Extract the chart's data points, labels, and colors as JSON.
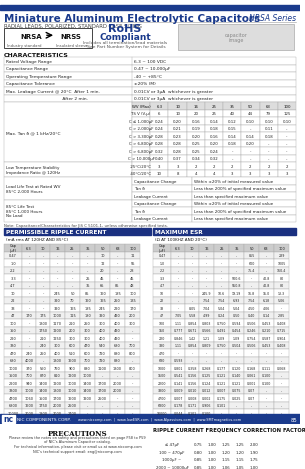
{
  "title": "Miniature Aluminum Electrolytic Capacitors",
  "series": "NRSA Series",
  "subtitle": "RADIAL LEADS, POLARIZED, STANDARD CASE SIZING",
  "rohs_line1": "RoHS",
  "rohs_line2": "Compliant",
  "rohs_sub": "Includes all termination/lead materials",
  "part_number_note": "*See Part Number System for Details",
  "characteristics_title": "CHARACTERISTICS",
  "ripple_title": "PERMISSIBLE RIPPLE CURRENT",
  "ripple_subtitle": "(mA rms AT 120HZ AND 85°C)",
  "esr_title": "MAXIMUM ESR",
  "esr_subtitle": "(Ω AT 100KHZ AND 20°C)",
  "precautions_title": "PRECAUTIONS",
  "precautions_lines": [
    "Please review the notes on safety and precautions listed on page P58 to P59",
    "of NIC's Aluminum Capacitor catalog.",
    "For technical information, please visit or email us at www.niccomp.com",
    "NIC's technical support email: eng@niccomp.com"
  ],
  "correction_title": "RIPPLE CURRENT FREQUENCY CORRECTION FACTOR",
  "bg_color": "#ffffff",
  "title_color": "#1a3a8c",
  "table_line_color": "#aaaaaa",
  "company": "NIC COMPONENTS CORP.",
  "website": "www.niccomp.com  |  www.lowESR.com  |  www.AIpassives.com  |  www.SMTmagnetics.com",
  "page_num": "85",
  "char_data": [
    [
      "Rated Voltage Range",
      "6.3 ~ 100 VDC"
    ],
    [
      "Capacitance Range",
      "0.47 ~ 10,000μF"
    ],
    [
      "Operating Temperature Range",
      "-40 ~ +85°C"
    ],
    [
      "Capacitance Tolerance",
      "±20% (M)"
    ],
    [
      "Max. Leakage Current @ 20°C  After 1 min.",
      "0.01CV or 3μA  whichever is greater"
    ],
    [
      "                                         After 2 min.",
      "0.01CV or 3μA  whichever is greater"
    ]
  ],
  "tan_cols": [
    "WV (Max)",
    "6.3",
    "10",
    "16",
    "25",
    "35",
    "50",
    "63",
    "100"
  ],
  "tan_rows": [
    [
      "TS V (V-μ)",
      "6",
      "10",
      "20",
      "25",
      "40",
      "44",
      "79",
      "125"
    ],
    [
      "C ≤ 1,000μF",
      "0.24",
      "0.20",
      "0.16",
      "0.14",
      "0.12",
      "0.10",
      "0.10",
      "0.10"
    ],
    [
      "C > 2,000μF",
      "0.24",
      "0.21",
      "0.19",
      "0.18",
      "0.15",
      "-",
      "0.11",
      "-"
    ],
    [
      "C > 3,300μF",
      "0.28",
      "0.23",
      "0.20",
      "0.16",
      "0.14",
      "0.14",
      "0.18",
      "-"
    ],
    [
      "C > 6,800μF",
      "0.28",
      "0.28",
      "0.25",
      "0.20",
      "0.18",
      "0.20",
      "-",
      "-"
    ],
    [
      "C > 6,800μF",
      "0.32",
      "0.28",
      "0.25",
      "0.24",
      "-",
      "-",
      "-",
      "-"
    ],
    [
      "C > 10,000μF",
      "0.40",
      "0.37",
      "0.34",
      "0.32",
      "-",
      "-",
      "-",
      "-"
    ]
  ],
  "lts_rows": [
    [
      "-25°C/20°C",
      "3",
      "3",
      "2",
      "2",
      "2",
      "2",
      "2",
      "2"
    ],
    [
      "-40°C/20°C",
      "10",
      "8",
      "4",
      "4",
      "3",
      "3",
      "3",
      "3"
    ]
  ],
  "ll_rows": [
    [
      "Capacitance Change",
      "Within ±20% of initial measured value"
    ],
    [
      "Tan δ",
      "Less than 200% of specified maximum value"
    ],
    [
      "Leakage Current",
      "Less than specified maximum value"
    ],
    [
      "Capacitance Change",
      "Within ±20% of initial measured value"
    ],
    [
      "Tan δ",
      "Less than 200% of specified maximum value"
    ],
    [
      "Leakage Current",
      "Less than specified maximum value"
    ]
  ],
  "rip_cols": [
    "Cap\n(μF)",
    "6.3",
    "10",
    "16",
    "25",
    "35",
    "50",
    "63",
    "100"
  ],
  "rip_data": [
    [
      "0.47",
      "-",
      "-",
      "-",
      "-",
      "-",
      "10",
      "-",
      "11"
    ],
    [
      "1.0",
      "-",
      "-",
      "-",
      "-",
      "-",
      "12",
      "-",
      "55"
    ],
    [
      "2.2",
      "-",
      "-",
      "-",
      "-",
      "-",
      "20",
      "-",
      "28"
    ],
    [
      "3.3",
      "-",
      "-",
      "-",
      "-",
      "25",
      "45",
      "-",
      "45"
    ],
    [
      "4.7",
      "-",
      "-",
      "-",
      "-",
      "35",
      "65",
      "85",
      "48"
    ],
    [
      "10",
      "-",
      "-",
      "245",
      "50",
      "85",
      "160",
      "185",
      "100"
    ],
    [
      "22",
      "-",
      "-",
      "320",
      "70",
      "160",
      "165",
      "250",
      "135"
    ],
    [
      "33",
      "-",
      "-",
      "390",
      "165",
      "185",
      "245",
      "290",
      "170"
    ],
    [
      "47",
      "170",
      "175",
      "1000",
      "115",
      "180",
      "390",
      "490",
      "200"
    ],
    [
      "100",
      "-",
      "1300",
      "1170",
      "210",
      "250",
      "300",
      "400",
      "300"
    ],
    [
      "150",
      "-",
      "1750",
      "1200",
      "200",
      "300",
      "400",
      "490",
      "-"
    ],
    [
      "220",
      "-",
      "210",
      "1250",
      "300",
      "300",
      "400",
      "490",
      "-"
    ],
    [
      "330",
      "-",
      "240",
      "300",
      "600",
      "470",
      "540",
      "680",
      "700"
    ],
    [
      "470",
      "240",
      "250",
      "400",
      "510",
      "600",
      "720",
      "880",
      "800"
    ],
    [
      "680",
      "4000",
      "-",
      "1300",
      "1600",
      "700",
      "720",
      "880",
      "-"
    ],
    [
      "1000",
      "370",
      "560",
      "760",
      "900",
      "880",
      "1100",
      "1300",
      "800"
    ],
    [
      "1500",
      "700",
      "870",
      "810",
      "1200",
      "1000",
      "-",
      "-",
      "-"
    ],
    [
      "2200",
      "940",
      "1400",
      "1200",
      "1000",
      "1400",
      "1700",
      "2000",
      "-"
    ],
    [
      "3300",
      "1000",
      "1400",
      "1300",
      "1000",
      "1400",
      "1700",
      "2000",
      "-"
    ],
    [
      "4700",
      "1060",
      "1500",
      "1700",
      "1600",
      "1900",
      "2500",
      "-",
      "-"
    ],
    [
      "6800",
      "1600",
      "1750",
      "2000",
      "2500",
      "-",
      "-",
      "-",
      "-"
    ],
    [
      "10000",
      "2000",
      "1300",
      "2000",
      "2700",
      "-",
      "-",
      "-",
      "-"
    ]
  ],
  "esr_cols": [
    "Cap\n(μF)",
    "6.3",
    "10",
    "16",
    "25",
    "35",
    "50",
    "63",
    "100"
  ],
  "esr_data": [
    [
      "0.47",
      "-",
      "-",
      "-",
      "-",
      "-",
      "855",
      "-",
      "289"
    ],
    [
      "1.0",
      "-",
      "-",
      "-",
      "-",
      "-",
      "600",
      "-",
      "1005"
    ],
    [
      "2.2",
      "-",
      "-",
      "-",
      "-",
      "-",
      "75.4",
      "-",
      "160.4"
    ],
    [
      "3.3",
      "-",
      "-",
      "-",
      "-",
      "500.6",
      "-",
      "40.8",
      "80"
    ],
    [
      "4.7",
      "-",
      "-",
      "-",
      "-",
      "550.8",
      "-",
      "40.8",
      "80"
    ],
    [
      "10",
      "-",
      "-",
      "245.9",
      "10.6",
      "19.19",
      "16.8",
      "15.0",
      "13.3"
    ],
    [
      "22",
      "-",
      "-",
      "7.54",
      "7.54",
      "6.93",
      "7.54",
      "6.18",
      "5.06"
    ],
    [
      "33",
      "-",
      "8.05",
      "7.04",
      "5.04",
      "5.04",
      "4.50",
      "4.06",
      "-"
    ],
    [
      "47",
      "7.05",
      "5.58",
      "4.99",
      "0.24",
      "0.50",
      "0.40",
      "0.14",
      "2.85"
    ],
    [
      "100",
      "1.11",
      "0.854",
      "0.803",
      "0.750",
      "0.594",
      "0.506",
      "0.453",
      "0.408"
    ],
    [
      "150",
      "0.777",
      "0.671",
      "0.566",
      "0.491",
      "0.454",
      "0.246",
      "0.210",
      "0.715"
    ],
    [
      "220",
      "0.846",
      "1.42",
      "1.21",
      "1.09",
      "1.09",
      "0.754",
      "0.587",
      "0.904"
    ],
    [
      "330",
      "1.11",
      "0.854",
      "0.809",
      "0.750",
      "0.504",
      "0.506",
      "0.453",
      "0.408"
    ],
    [
      "470",
      "-",
      "-",
      "-",
      "-",
      "-",
      "-",
      "-",
      "-"
    ],
    [
      "680",
      "0.593",
      "-",
      "-",
      "-",
      "-",
      "-",
      "-",
      "-"
    ],
    [
      "1000",
      "0.801",
      "0.358",
      "0.268",
      "0.177",
      "0.120",
      "0.168",
      "0.111",
      "0.068"
    ],
    [
      "1500",
      "0.541",
      "0.156",
      "0.125",
      "0.121",
      "0.140",
      "0.061",
      "0.100",
      "-"
    ],
    [
      "2200",
      "0.141",
      "0.156",
      "0.124",
      "0.121",
      "0.121",
      "0.001",
      "0.100",
      "-"
    ],
    [
      "3300",
      "0.009",
      "0.010",
      "0.012",
      "0.007",
      "0.075",
      "0.07",
      "-",
      "-"
    ],
    [
      "4700",
      "0.007",
      "0.008",
      "0.002",
      "0.175",
      "0.025",
      "0.07",
      "-",
      "-"
    ],
    [
      "6800",
      "0.178",
      "0.171",
      "0.906",
      "0.101",
      "-",
      "-",
      "-",
      "-"
    ],
    [
      "10000",
      "0.044",
      "0.101",
      "0.100",
      "-",
      "-",
      "-",
      "-",
      "-"
    ]
  ],
  "corr_cols": [
    "Frequency (Hz)",
    "50",
    "120",
    "300",
    "1k",
    "10k"
  ],
  "corr_data": [
    [
      "≤ 47μF",
      "0.75",
      "1.00",
      "1.25",
      "1.25",
      "2.00"
    ],
    [
      "100 ~ 470μF",
      "0.80",
      "1.00",
      "1.20",
      "1.20",
      "1.90"
    ],
    [
      "1000μF ~",
      "0.85",
      "1.00",
      "1.15",
      "1.15",
      "1.75"
    ],
    [
      "2000 ~ 10000μF",
      "0.85",
      "1.00",
      "1.06",
      "1.05",
      "1.00"
    ]
  ]
}
